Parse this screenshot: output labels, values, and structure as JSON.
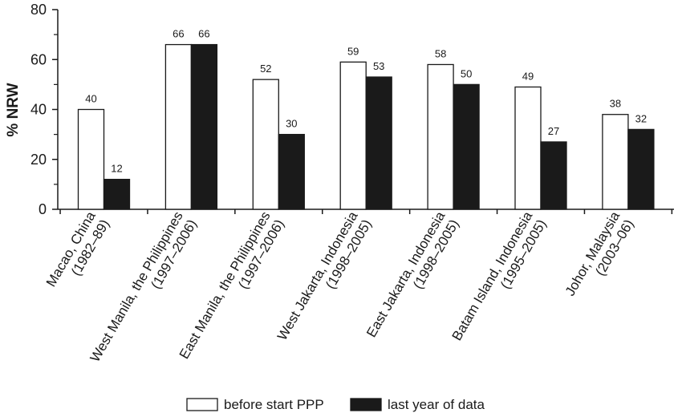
{
  "chart_data": {
    "type": "bar",
    "title": "",
    "xlabel": "",
    "ylabel": "% NRW",
    "ylim": [
      0,
      80
    ],
    "yticks": [
      0,
      20,
      40,
      60,
      80
    ],
    "grid": false,
    "legend_position": "bottom-center",
    "categories": [
      [
        "Macao, China",
        "(1982–89)"
      ],
      [
        "West Manila, the Philippines",
        "(1997–2006)"
      ],
      [
        "East Manila, the Philippines",
        "(1997–2006)"
      ],
      [
        "West Jakarta, Indonesia",
        "(1998–2005)"
      ],
      [
        "East Jakarta, Indonesia",
        "(1998–2005)"
      ],
      [
        "Batam Island, Indonesia",
        "(1995–2005)"
      ],
      [
        "Johor, Malaysia",
        "(2003–06)"
      ]
    ],
    "series": [
      {
        "name": "before start PPP",
        "color": "#ffffff",
        "values": [
          40,
          66,
          52,
          59,
          58,
          49,
          38
        ]
      },
      {
        "name": "last year of data",
        "color": "#1a1a1a",
        "values": [
          12,
          66,
          30,
          53,
          50,
          27,
          32
        ]
      }
    ]
  }
}
